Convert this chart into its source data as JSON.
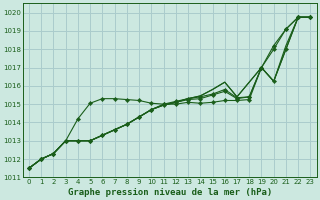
{
  "title": "Graphe pression niveau de la mer (hPa)",
  "bg_color": "#cce8e0",
  "grid_color": "#aacccc",
  "line_color": "#1a5e1a",
  "marker_color": "#1a5e1a",
  "xlim": [
    -0.5,
    23.5
  ],
  "ylim": [
    1011,
    1020.5
  ],
  "xticks": [
    0,
    1,
    2,
    3,
    4,
    5,
    6,
    7,
    8,
    9,
    10,
    11,
    12,
    13,
    14,
    15,
    16,
    17,
    18,
    19,
    20,
    21,
    22,
    23
  ],
  "yticks": [
    1011,
    1012,
    1013,
    1014,
    1015,
    1016,
    1017,
    1018,
    1019,
    1020
  ],
  "lines": [
    {
      "x": [
        0,
        1,
        2,
        3,
        4,
        5,
        6,
        7,
        8,
        9,
        10,
        11,
        12,
        13,
        14,
        15,
        16,
        17,
        18,
        19,
        20,
        21,
        22,
        23
      ],
      "y": [
        1011.5,
        1012.0,
        1012.3,
        1013.0,
        1014.2,
        1015.05,
        1015.3,
        1015.3,
        1015.25,
        1015.2,
        1015.05,
        1015.0,
        1015.0,
        1015.1,
        1015.05,
        1015.1,
        1015.2,
        1015.2,
        1015.25,
        1017.0,
        1018.2,
        1019.1,
        1019.75,
        1019.75
      ],
      "markers": true
    },
    {
      "x": [
        0,
        1,
        2,
        3,
        4,
        5,
        6,
        7,
        8,
        9,
        10,
        11,
        12,
        13,
        14,
        15,
        16,
        17,
        18,
        19,
        20,
        21,
        22,
        23
      ],
      "y": [
        1011.5,
        1012.0,
        1012.3,
        1013.0,
        1013.0,
        1013.0,
        1013.3,
        1013.6,
        1013.9,
        1014.3,
        1014.7,
        1015.0,
        1015.15,
        1015.3,
        1015.4,
        1015.55,
        1015.8,
        1015.35,
        1015.4,
        1017.0,
        1016.25,
        1018.0,
        1019.75,
        1019.75
      ],
      "markers": true
    },
    {
      "x": [
        0,
        1,
        2,
        3,
        4,
        5,
        6,
        7,
        8,
        9,
        10,
        11,
        12,
        13,
        14,
        15,
        16,
        17,
        18,
        19,
        20,
        21,
        22,
        23
      ],
      "y": [
        1011.5,
        1012.0,
        1012.3,
        1013.0,
        1013.0,
        1013.0,
        1013.3,
        1013.6,
        1013.9,
        1014.3,
        1014.7,
        1014.95,
        1015.1,
        1015.3,
        1015.45,
        1015.8,
        1016.2,
        1015.4,
        1016.2,
        1017.0,
        1016.25,
        1018.0,
        1019.75,
        1019.75
      ],
      "markers": false
    },
    {
      "x": [
        0,
        1,
        2,
        3,
        4,
        5,
        6,
        7,
        8,
        9,
        10,
        11,
        12,
        13,
        14,
        15,
        16,
        17,
        18,
        19,
        20,
        21,
        22,
        23
      ],
      "y": [
        1011.5,
        1012.0,
        1012.3,
        1013.0,
        1013.0,
        1013.0,
        1013.3,
        1013.6,
        1013.9,
        1014.3,
        1014.7,
        1014.95,
        1015.1,
        1015.3,
        1015.45,
        1015.8,
        1016.2,
        1015.4,
        1016.2,
        1017.0,
        1016.25,
        1018.2,
        1019.75,
        1019.75
      ],
      "markers": false
    },
    {
      "x": [
        0,
        1,
        2,
        3,
        4,
        5,
        6,
        7,
        8,
        9,
        10,
        11,
        12,
        13,
        14,
        15,
        16,
        17,
        18,
        19,
        20,
        21,
        22,
        23
      ],
      "y": [
        1011.5,
        1012.0,
        1012.3,
        1013.0,
        1013.0,
        1013.0,
        1013.3,
        1013.6,
        1013.9,
        1014.3,
        1014.7,
        1014.95,
        1015.1,
        1015.25,
        1015.3,
        1015.5,
        1015.7,
        1015.3,
        1015.4,
        1017.0,
        1018.0,
        1019.1,
        1019.75,
        1019.75
      ],
      "markers": true
    }
  ]
}
